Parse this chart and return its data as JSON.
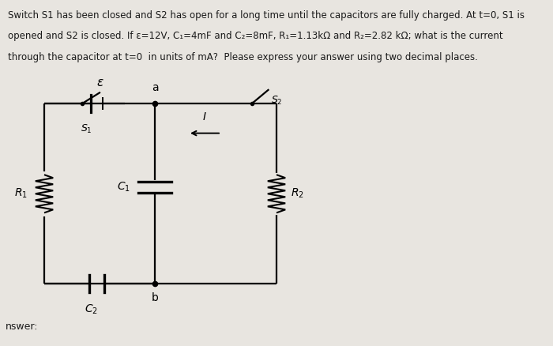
{
  "bg_color": "#e8e5e0",
  "text_color": "#1a1a1a",
  "title_lines": [
    "Switch S1 has been closed and S2 has open for a long time until the capacitors are fully charged. At t=0, S1 is",
    "opened and S2 is closed. If ε=12V, C₁=4mF and C₂=8mF, R₁=1.13kΩ and R₂=2.82 kΩ; what is the current",
    "through the capacitor at t=0  in units of mA?  Please express your answer using two decimal places."
  ],
  "answer_label": "nswer:",
  "lw": 1.6,
  "lw_thick": 2.4,
  "color": "#000000",
  "fs_label": 10,
  "fs_text": 8.5
}
